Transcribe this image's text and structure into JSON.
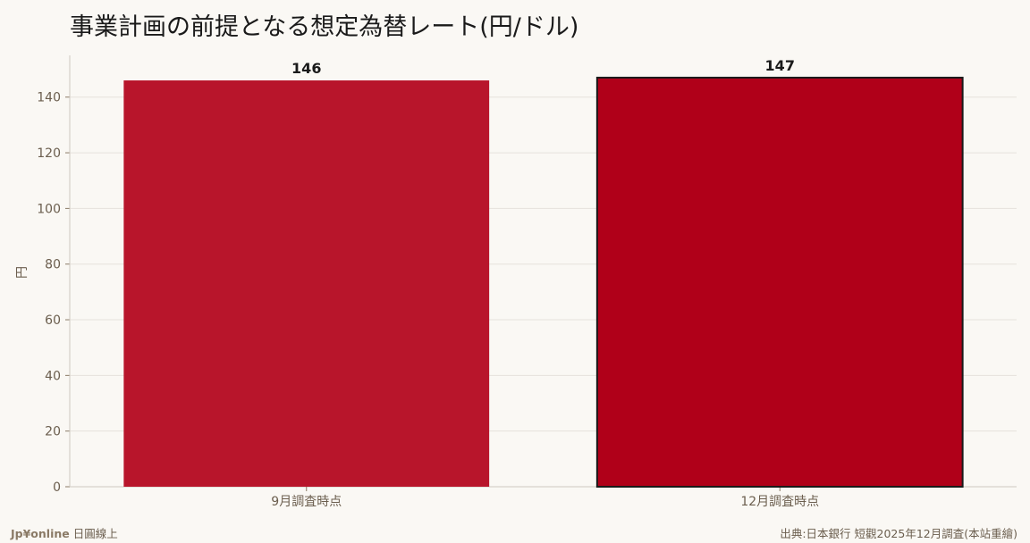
{
  "title": "事業計画の前提となる想定為替レート(円/ドル)",
  "footer": {
    "brand": "Jp¥online",
    "brand_suffix": "日圓線上",
    "source": "出典:日本銀行 短觀2025年12月調査(本站重繪)"
  },
  "colors": {
    "bar_default": "#b8152b",
    "bar_highlight": "#b00019",
    "highlight_border": "#1a1a1a",
    "grid": "#e6e2dc",
    "axis_text": "#6b5e4e"
  },
  "chart_data": {
    "type": "bar",
    "title": "事業計画の前提となる想定為替レート(円/ドル)",
    "categories": [
      "9月調査時点",
      "12月調査時点"
    ],
    "values": [
      146,
      147
    ],
    "data_labels": [
      "146",
      "147"
    ],
    "highlight_index": 1,
    "xlabel": "",
    "ylabel": "円",
    "ylim": [
      0,
      155
    ],
    "yticks": [
      0,
      20,
      40,
      60,
      80,
      100,
      120,
      140
    ],
    "grid": true,
    "legend": "none"
  }
}
